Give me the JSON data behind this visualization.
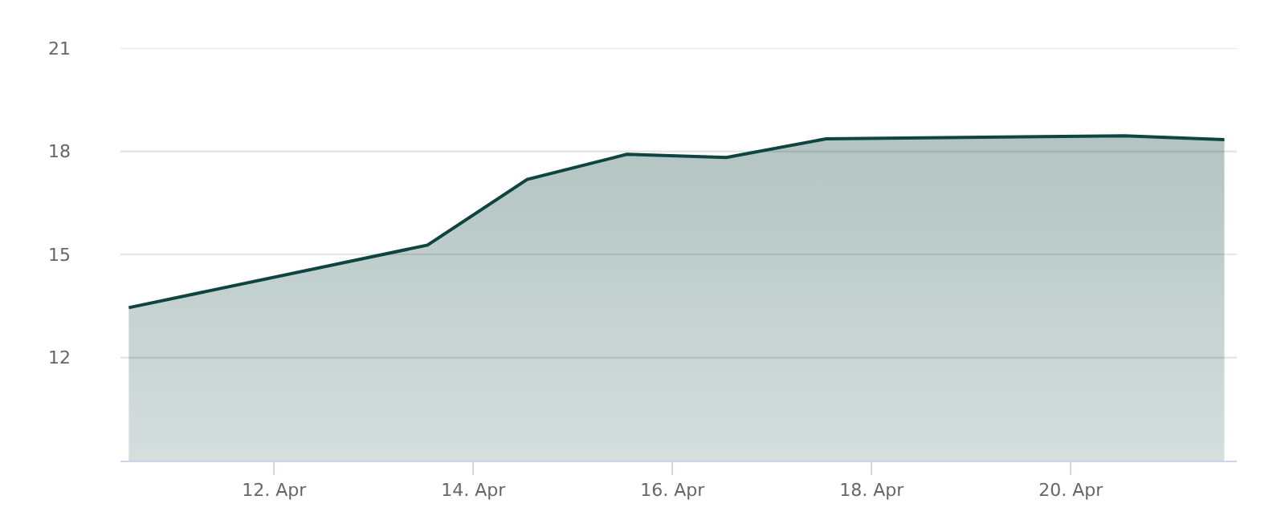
{
  "chart_data": {
    "type": "area",
    "x": [
      "--04-10T13:00",
      "--04-13T13:00",
      "--04-14T13:00",
      "--04-15T13:00",
      "--04-16T13:00",
      "--04-17T13:00",
      "--04-20T13:00",
      "--04-21T13:00"
    ],
    "series": [
      {
        "color": "#0f4540",
        "values": [
          13.45,
          15.27,
          17.18,
          17.91,
          17.82,
          18.36,
          18.45,
          18.34
        ]
      }
    ],
    "xlim": [
      "--04-10T11:00",
      "--04-21T16:00"
    ],
    "xticks": [
      {
        "value": "--04-12",
        "label": "12. Apr"
      },
      {
        "value": "--04-14",
        "label": "14. Apr"
      },
      {
        "value": "--04-16",
        "label": "16. Apr"
      },
      {
        "value": "--04-18",
        "label": "18. Apr"
      },
      {
        "value": "--04-20",
        "label": "20. Apr"
      }
    ],
    "ylim": [
      9,
      21
    ],
    "yticks": [
      12,
      15,
      18,
      21
    ],
    "grid": "y"
  }
}
